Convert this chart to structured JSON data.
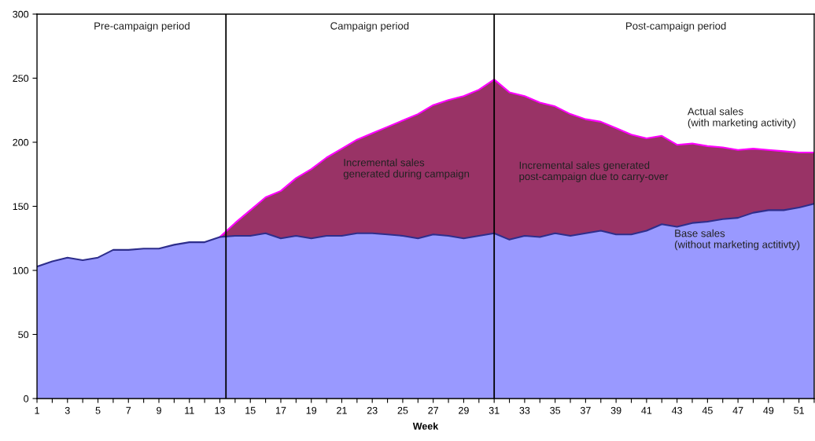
{
  "chart_data": {
    "type": "area",
    "xlabel": "Week",
    "x": [
      1,
      2,
      3,
      4,
      5,
      6,
      7,
      8,
      9,
      10,
      11,
      12,
      13,
      14,
      15,
      16,
      17,
      18,
      19,
      20,
      21,
      22,
      23,
      24,
      25,
      26,
      27,
      28,
      29,
      30,
      31,
      32,
      33,
      34,
      35,
      36,
      37,
      38,
      39,
      40,
      41,
      42,
      43,
      44,
      45,
      46,
      47,
      48,
      49,
      50,
      51,
      52
    ],
    "series": [
      {
        "name": "Actual sales\n(with marketing activity)",
        "color": "#993366",
        "values": [
          null,
          null,
          null,
          null,
          null,
          null,
          null,
          null,
          null,
          null,
          null,
          null,
          126,
          137,
          147,
          157,
          162,
          172,
          179,
          188,
          195,
          202,
          207,
          212,
          217,
          222,
          229,
          233,
          236,
          241,
          249,
          239,
          236,
          231,
          228,
          222,
          218,
          216,
          211,
          206,
          203,
          205,
          198,
          199,
          197,
          196,
          194,
          195,
          194,
          193,
          192,
          192
        ]
      },
      {
        "name": "Base sales\n(without marketing actitivty)",
        "color": "#9999ff",
        "values": [
          103,
          107,
          110,
          108,
          110,
          116,
          116,
          117,
          117,
          120,
          122,
          122,
          126,
          127,
          127,
          129,
          125,
          127,
          125,
          127,
          127,
          129,
          129,
          128,
          127,
          125,
          128,
          127,
          125,
          127,
          129,
          124,
          127,
          126,
          129,
          127,
          129,
          131,
          128,
          128,
          131,
          136,
          134,
          137,
          138,
          140,
          141,
          145,
          147,
          147,
          149,
          152
        ]
      }
    ],
    "xlim": [
      1,
      52
    ],
    "xticks": [
      1,
      {
        "value": 2,
        "label": null
      },
      3,
      {
        "value": 4,
        "label": null
      },
      5,
      {
        "value": 6,
        "label": null
      },
      7,
      {
        "value": 8,
        "label": null
      },
      9,
      {
        "value": 10,
        "label": null
      },
      11,
      {
        "value": 12,
        "label": null
      },
      13,
      {
        "value": 14,
        "label": null
      },
      15,
      {
        "value": 16,
        "label": null
      },
      17,
      {
        "value": 18,
        "label": null
      },
      19,
      {
        "value": 20,
        "label": null
      },
      21,
      {
        "value": 22,
        "label": null
      },
      23,
      {
        "value": 24,
        "label": null
      },
      25,
      {
        "value": 26,
        "label": null
      },
      27,
      {
        "value": 28,
        "label": null
      },
      29,
      {
        "value": 30,
        "label": null
      },
      31,
      {
        "value": 32,
        "label": null
      },
      33,
      {
        "value": 34,
        "label": null
      },
      35,
      {
        "value": 36,
        "label": null
      },
      37,
      {
        "value": 38,
        "label": null
      },
      39,
      {
        "value": 40,
        "label": null
      },
      41,
      {
        "value": 42,
        "label": null
      },
      43,
      {
        "value": 44,
        "label": null
      },
      45,
      {
        "value": 46,
        "label": null
      },
      47,
      {
        "value": 48,
        "label": null
      },
      49,
      {
        "value": 50,
        "label": null
      },
      51,
      {
        "value": 52,
        "label": null
      }
    ],
    "ylim": [
      0,
      300
    ],
    "yticks": [
      0,
      50,
      100,
      150,
      200,
      250,
      300
    ],
    "ref_lines": [
      {
        "axis": "x",
        "value": 13.4,
        "color": "#000000"
      },
      {
        "axis": "x",
        "value": 31,
        "color": "#000000"
      }
    ],
    "annotations": [
      "Pre-campaign period",
      "Campaign period",
      "Post-campaign period",
      "Incremental sales\ngenerated during campaign",
      "Incremental sales generated\npost-campaign due to carry-over"
    ],
    "grid": false,
    "legend": false
  }
}
